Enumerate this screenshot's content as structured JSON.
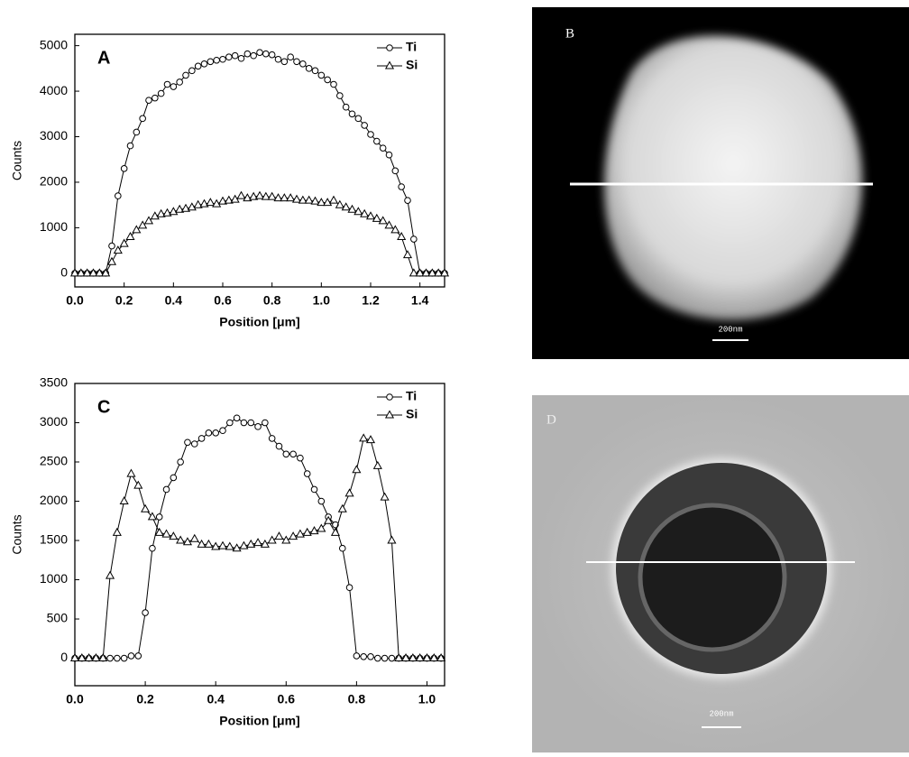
{
  "chart_data": [
    {
      "type": "line",
      "annotation": "A",
      "xlabel": "Position [μm]",
      "ylabel": "Counts",
      "xlim": [
        0,
        1.5
      ],
      "ylim": [
        -300,
        5250
      ],
      "xticks": [
        {
          "value": 0,
          "label": "0.0"
        },
        0.2,
        0.4,
        0.6,
        0.8,
        {
          "value": 1,
          "label": "1.0"
        },
        1.2,
        1.4
      ],
      "yticks": [
        0,
        1000,
        2000,
        3000,
        4000,
        5000
      ],
      "legend": "upper right",
      "x": [
        0,
        0.025,
        0.05,
        0.075,
        0.1,
        0.125,
        0.15,
        0.175,
        0.2,
        0.225,
        0.25,
        0.275,
        0.3,
        0.325,
        0.35,
        0.375,
        0.4,
        0.425,
        0.45,
        0.475,
        0.5,
        0.525,
        0.55,
        0.575,
        0.6,
        0.625,
        0.65,
        0.675,
        0.7,
        0.725,
        0.75,
        0.775,
        0.8,
        0.825,
        0.85,
        0.875,
        0.9,
        0.925,
        0.95,
        0.975,
        1,
        1.025,
        1.05,
        1.075,
        1.1,
        1.125,
        1.15,
        1.175,
        1.2,
        1.225,
        1.25,
        1.275,
        1.3,
        1.325,
        1.35,
        1.375,
        1.4,
        1.425,
        1.45,
        1.475,
        1.5
      ],
      "series": [
        {
          "name": "Ti",
          "color": "#000000",
          "marker": "circle",
          "values": [
            0,
            0,
            0,
            0,
            0,
            0,
            600,
            1700,
            2300,
            2800,
            3100,
            3400,
            3800,
            3850,
            3950,
            4150,
            4100,
            4200,
            4350,
            4450,
            4550,
            4600,
            4650,
            4680,
            4700,
            4750,
            4780,
            4720,
            4820,
            4780,
            4850,
            4820,
            4800,
            4700,
            4650,
            4750,
            4650,
            4600,
            4500,
            4450,
            4350,
            4250,
            4150,
            3900,
            3650,
            3500,
            3400,
            3250,
            3050,
            2900,
            2750,
            2600,
            2250,
            1900,
            1600,
            750,
            0,
            0,
            0,
            0,
            0
          ]
        },
        {
          "name": "Si",
          "color": "#000000",
          "marker": "triangle",
          "values": [
            0,
            0,
            0,
            0,
            0,
            0,
            250,
            500,
            650,
            800,
            950,
            1050,
            1150,
            1250,
            1300,
            1320,
            1350,
            1400,
            1420,
            1450,
            1500,
            1520,
            1550,
            1520,
            1580,
            1600,
            1620,
            1700,
            1650,
            1680,
            1700,
            1680,
            1680,
            1650,
            1650,
            1650,
            1620,
            1600,
            1600,
            1580,
            1550,
            1550,
            1600,
            1500,
            1450,
            1400,
            1350,
            1300,
            1250,
            1200,
            1150,
            1050,
            950,
            800,
            400,
            0,
            0,
            0,
            0,
            0,
            0
          ]
        }
      ]
    },
    {
      "type": "line",
      "annotation": "C",
      "xlabel": "Position [μm]",
      "ylabel": "Counts",
      "xlim": [
        0,
        1.05
      ],
      "ylim": [
        -350,
        3500
      ],
      "xticks": [
        {
          "value": 0,
          "label": "0.0"
        },
        0.2,
        0.4,
        0.6,
        0.8,
        {
          "value": 1,
          "label": "1.0"
        }
      ],
      "yticks": [
        0,
        500,
        1000,
        1500,
        2000,
        2500,
        3000,
        3500
      ],
      "legend": "upper right",
      "x": [
        0,
        0.02,
        0.04,
        0.06,
        0.08,
        0.1,
        0.12,
        0.14,
        0.16,
        0.18,
        0.2,
        0.22,
        0.24,
        0.26,
        0.28,
        0.3,
        0.32,
        0.34,
        0.36,
        0.38,
        0.4,
        0.42,
        0.44,
        0.46,
        0.48,
        0.5,
        0.52,
        0.54,
        0.56,
        0.58,
        0.6,
        0.62,
        0.64,
        0.66,
        0.68,
        0.7,
        0.72,
        0.74,
        0.76,
        0.78,
        0.8,
        0.82,
        0.84,
        0.86,
        0.88,
        0.9,
        0.92,
        0.94,
        0.96,
        0.98,
        1,
        1.02,
        1.04
      ],
      "series": [
        {
          "name": "Ti",
          "color": "#000000",
          "marker": "circle",
          "values": [
            0,
            0,
            0,
            0,
            0,
            0,
            0,
            0,
            30,
            30,
            580,
            1400,
            1800,
            2150,
            2300,
            2500,
            2750,
            2730,
            2800,
            2870,
            2870,
            2900,
            3000,
            3060,
            3000,
            3000,
            2950,
            3000,
            2800,
            2700,
            2600,
            2600,
            2550,
            2350,
            2150,
            2000,
            1800,
            1700,
            1400,
            900,
            30,
            20,
            20,
            0,
            0,
            0,
            0,
            0,
            0,
            0,
            0,
            0,
            0
          ]
        },
        {
          "name": "Si",
          "color": "#000000",
          "marker": "triangle",
          "values": [
            0,
            0,
            0,
            0,
            0,
            1050,
            1600,
            2000,
            2350,
            2200,
            1900,
            1800,
            1600,
            1580,
            1550,
            1500,
            1480,
            1520,
            1450,
            1450,
            1420,
            1430,
            1420,
            1400,
            1430,
            1450,
            1470,
            1450,
            1500,
            1550,
            1500,
            1550,
            1580,
            1600,
            1620,
            1650,
            1750,
            1600,
            1900,
            2100,
            2400,
            2800,
            2780,
            2450,
            2050,
            1500,
            0,
            0,
            0,
            0,
            0,
            0,
            0
          ]
        }
      ]
    }
  ],
  "images": [
    {
      "label": "B",
      "scale_bar": "200nm"
    },
    {
      "label": "D",
      "scale_bar": "200nm"
    }
  ]
}
